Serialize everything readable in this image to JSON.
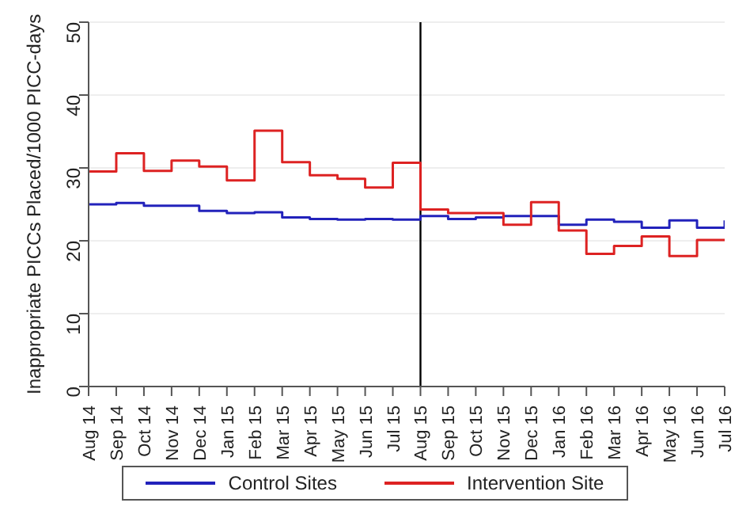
{
  "chart_data": {
    "type": "step",
    "ylabel": "Inappropriate PICCs Placed/1000 PICC-days",
    "categories": [
      "Aug 14",
      "Sep 14",
      "Oct 14",
      "Nov 14",
      "Dec 14",
      "Jan 15",
      "Feb 15",
      "Mar 15",
      "Apr 15",
      "May 15",
      "Jun 15",
      "Jul 15",
      "Aug 15",
      "Sep 15",
      "Oct 15",
      "Nov 15",
      "Dec 15",
      "Jan 16",
      "Feb 16",
      "Mar 16",
      "Apr 16",
      "May 16",
      "Jun 16",
      "Jul 16"
    ],
    "series": [
      {
        "name": "Control Sites",
        "color": "#2222bb",
        "values": [
          25,
          25.2,
          24.8,
          24.8,
          24.1,
          23.8,
          23.9,
          23.2,
          23,
          22.9,
          23,
          22.9,
          23.4,
          23,
          23.2,
          23.4,
          23.4,
          22.2,
          22.9,
          22.6,
          21.8,
          22.8,
          21.8,
          22.8
        ]
      },
      {
        "name": "Intervention Site",
        "color": "#dd2222",
        "values": [
          29.5,
          32,
          29.6,
          31,
          30.2,
          28.3,
          35.1,
          30.8,
          29,
          28.5,
          27.3,
          30.7,
          24.3,
          23.8,
          23.8,
          22.2,
          25.3,
          21.4,
          18.2,
          19.3,
          20.6,
          17.9,
          20.1,
          20.1
        ]
      }
    ],
    "ylim": [
      0,
      50
    ],
    "yticks": [
      0,
      10,
      20,
      30,
      40,
      50
    ],
    "grid": "y",
    "legend": "bottom",
    "ref_lines": [
      {
        "axis": "x",
        "value": "Aug 15",
        "color": "#000000"
      }
    ]
  }
}
